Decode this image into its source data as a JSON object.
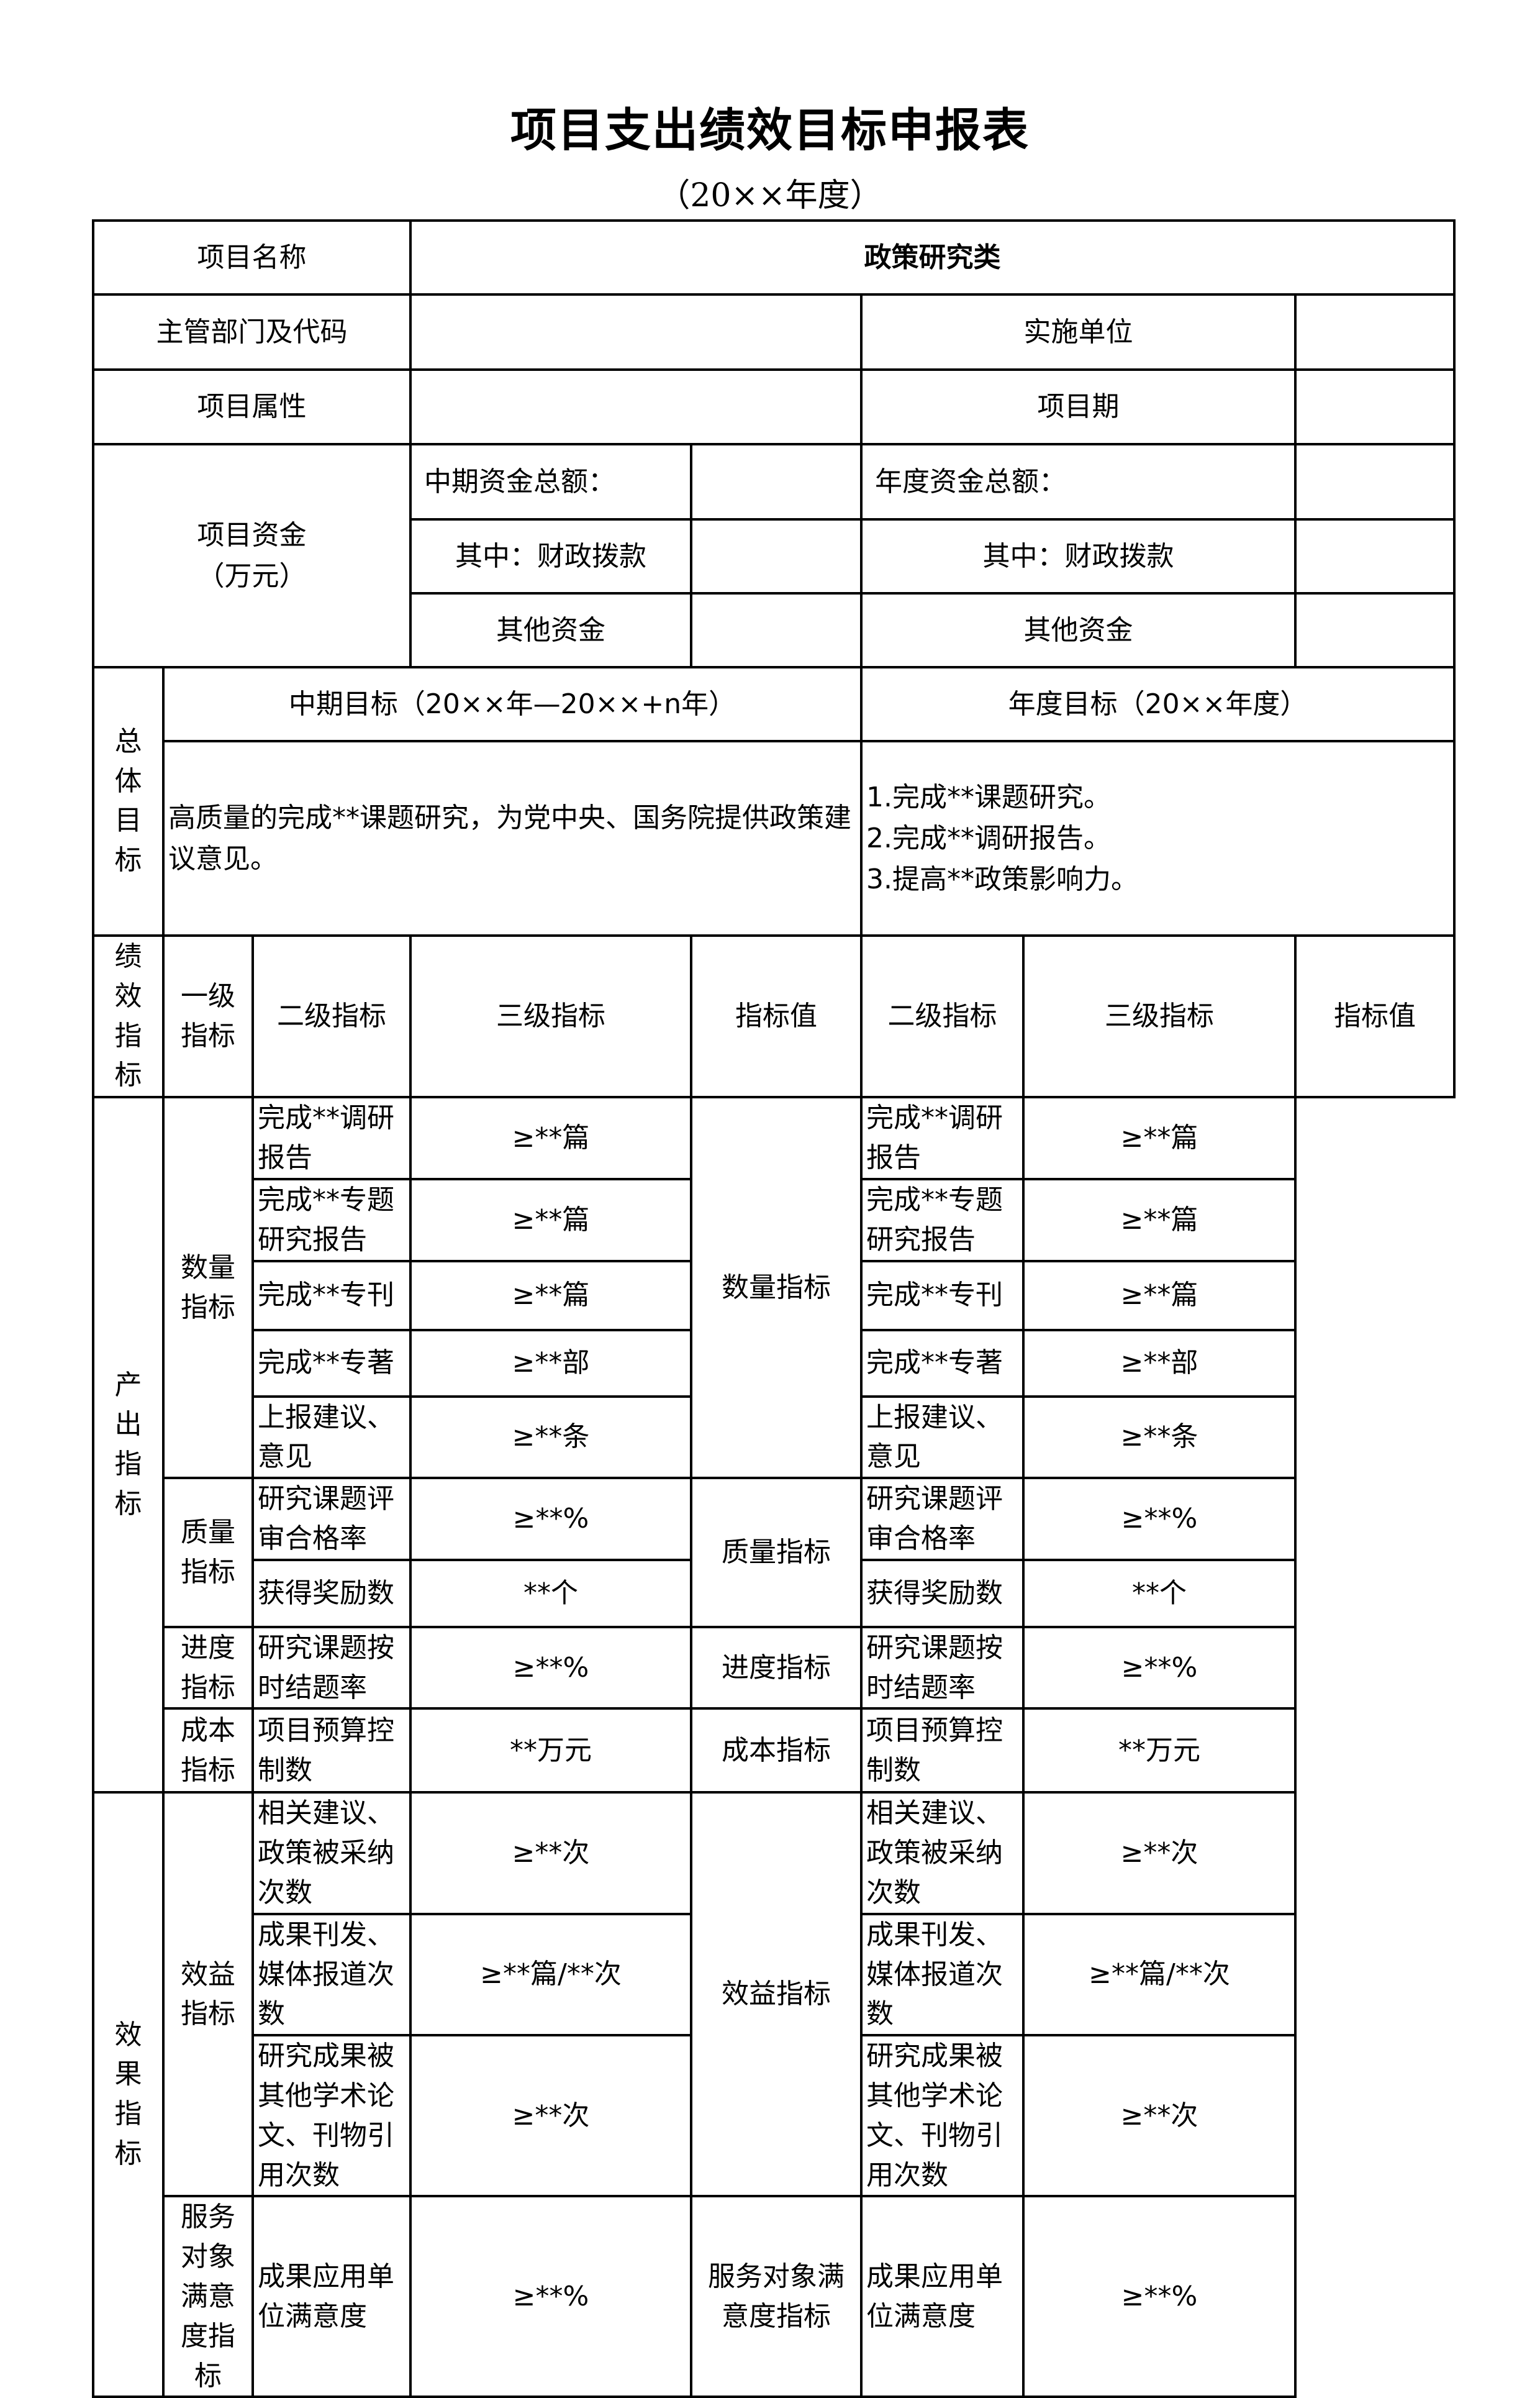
{
  "title": "项目支出绩效目标申报表",
  "subtitle": "（20××年度）",
  "basic": {
    "project_name_label": "项目名称",
    "project_name_value": "政策研究类",
    "dept_label": "主管部门及代码",
    "dept_value": "",
    "impl_unit_label": "实施单位",
    "impl_unit_value": "",
    "attr_label": "项目属性",
    "attr_value": "",
    "period_label": "项目期",
    "period_value": ""
  },
  "funds": {
    "label": "项目资金",
    "unit": "（万元）",
    "mid_total_label": "中期资金总额：",
    "mid_total_value": "",
    "year_total_label": "年度资金总额：",
    "year_total_value": "",
    "mid_fiscal_label": "其中：财政拨款",
    "mid_fiscal_value": "",
    "year_fiscal_label": "其中：财政拨款",
    "year_fiscal_value": "",
    "mid_other_label": "其他资金",
    "mid_other_value": "",
    "year_other_label": "其他资金",
    "year_other_value": ""
  },
  "overall": {
    "label": "总体目标",
    "mid_header": "中期目标（20××年—20××+n年）",
    "year_header": "年度目标（20××年度）",
    "mid_text": "高质量的完成**课题研究，为党中央、国务院提供政策建议意见。",
    "year_lines": [
      "1.完成**课题研究。",
      "2.完成**调研报告。",
      "3.提高**政策影响力。"
    ]
  },
  "perf": {
    "label": "绩效指标",
    "headers": {
      "level1": "一级指标",
      "level2": "二级指标",
      "level3": "三级指标",
      "value": "指标值"
    },
    "output_label": "产出指标",
    "effect_label": "效果指标",
    "groups": {
      "quantity": "数量指标",
      "quality": "质量指标",
      "progress": "进度指标",
      "cost": "成本指标",
      "benefit": "效益指标",
      "satisfaction": "服务对象满意度指标"
    },
    "rows": [
      {
        "item": "完成**调研报告",
        "value": "≥**篇"
      },
      {
        "item": "完成**专题研究报告",
        "value": "≥**篇"
      },
      {
        "item": "完成**专刊",
        "value": "≥**篇"
      },
      {
        "item": "完成**专著",
        "value": "≥**部"
      },
      {
        "item": "上报建议、意见",
        "value": "≥**条"
      },
      {
        "item": "研究课题评审合格率",
        "value": "≥**%"
      },
      {
        "item": "获得奖励数",
        "value": "**个"
      },
      {
        "item": "研究课题按时结题率",
        "value": "≥**%"
      },
      {
        "item": "项目预算控制数",
        "value": "**万元"
      },
      {
        "item": "相关建议、政策被采纳次数",
        "value": "≥**次"
      },
      {
        "item": "成果刊发、媒体报道次数",
        "value": "≥**篇/**次"
      },
      {
        "item": "研究成果被其他学术论文、刊物引用次数",
        "value": "≥**次"
      },
      {
        "item": "成果应用单位满意度",
        "value": "≥**%"
      }
    ]
  }
}
